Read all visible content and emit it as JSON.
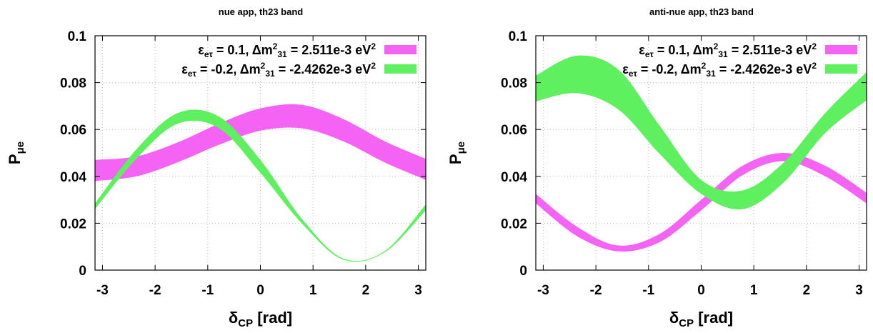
{
  "chart_data": [
    {
      "type": "area",
      "title": "nue app, th23 band",
      "xlabel": "δ",
      "xlabel_sub": "CP",
      "xlabel_suffix": " [rad]",
      "ylabel": "P",
      "ylabel_sub": "μe",
      "xlim": [
        -3.14159,
        3.14159
      ],
      "ylim": [
        0,
        0.1
      ],
      "xticks": [
        -3,
        -2,
        -1,
        0,
        1,
        2,
        3
      ],
      "xtick_labels": [
        "-3",
        "-2",
        "-1",
        "0",
        "1",
        "2",
        "3"
      ],
      "yticks": [
        0,
        0.02,
        0.04,
        0.06,
        0.08,
        0.1
      ],
      "ytick_labels": [
        "0",
        "0.02",
        "0.04",
        "0.06",
        "0.08",
        "0.1"
      ],
      "grid": true,
      "legend_position": "top-right",
      "series": [
        {
          "legend": {
            "eps": "ε",
            "eps_sub": "eτ",
            "eps_val": " = 0.1, Δm",
            "dm_sup": "2",
            "dm_sub": "31",
            "dm_val": " = 2.511e-3 eV",
            "ev_sup": "2"
          },
          "color": "#f463f4",
          "x": [
            -3.14159,
            -2.35619,
            -1.5708,
            -0.785398,
            0,
            0.785398,
            1.5708,
            2.35619,
            3.14159
          ],
          "lower": [
            0.038,
            0.04,
            0.046,
            0.0535,
            0.0595,
            0.0605,
            0.055,
            0.046,
            0.0385
          ],
          "upper": [
            0.047,
            0.0485,
            0.0545,
            0.0625,
            0.069,
            0.0705,
            0.0645,
            0.055,
            0.0475
          ]
        },
        {
          "legend": {
            "eps": "ε",
            "eps_sub": "eτ",
            "eps_val": " = -0.2, Δm",
            "dm_sup": "2",
            "dm_sub": "31",
            "dm_val": " = -2.4262e-3 eV",
            "ev_sup": "2"
          },
          "color": "#5ef05e",
          "x": [
            -3.14159,
            -2.35619,
            -1.5708,
            -0.785398,
            0,
            0.785398,
            1.5708,
            2.35619,
            3.14159
          ],
          "lower": [
            0.026,
            0.0475,
            0.0625,
            0.0605,
            0.0415,
            0.02,
            0.0045,
            0.0075,
            0.0255
          ],
          "upper": [
            0.0285,
            0.0515,
            0.067,
            0.0655,
            0.047,
            0.022,
            0.005,
            0.008,
            0.028
          ]
        }
      ]
    },
    {
      "type": "area",
      "title": "anti-nue app, th23 band",
      "xlabel": "δ",
      "xlabel_sub": "CP",
      "xlabel_suffix": " [rad]",
      "ylabel": "P",
      "ylabel_sub": "μe",
      "xlim": [
        -3.14159,
        3.14159
      ],
      "ylim": [
        0,
        0.1
      ],
      "xticks": [
        -3,
        -2,
        -1,
        0,
        1,
        2,
        3
      ],
      "xtick_labels": [
        "-3",
        "-2",
        "-1",
        "0",
        "1",
        "2",
        "3"
      ],
      "yticks": [
        0,
        0.02,
        0.04,
        0.06,
        0.08,
        0.1
      ],
      "ytick_labels": [
        "0",
        "0.02",
        "0.04",
        "0.06",
        "0.08",
        "0.1"
      ],
      "grid": true,
      "legend_position": "top-right",
      "series": [
        {
          "legend": {
            "eps": "ε",
            "eps_sub": "eτ",
            "eps_val": " = 0.1, Δm",
            "dm_sup": "2",
            "dm_sub": "31",
            "dm_val": " = 2.511e-3 eV",
            "ev_sup": "2"
          },
          "color": "#f463f4",
          "x": [
            -3.14159,
            -2.35619,
            -1.5708,
            -0.785398,
            0,
            0.785398,
            1.5708,
            2.35619,
            3.14159
          ],
          "lower": [
            0.0285,
            0.0145,
            0.008,
            0.012,
            0.0255,
            0.0405,
            0.0465,
            0.04,
            0.0285
          ],
          "upper": [
            0.0325,
            0.0185,
            0.0105,
            0.0155,
            0.03,
            0.0445,
            0.05,
            0.0445,
            0.033
          ]
        },
        {
          "legend": {
            "eps": "ε",
            "eps_sub": "eτ",
            "eps_val": " = -0.2, Δm",
            "dm_sup": "2",
            "dm_sub": "31",
            "dm_val": " = -2.4262e-3 eV",
            "ev_sup": "2"
          },
          "color": "#5ef05e",
          "x": [
            -3.14159,
            -2.35619,
            -1.5708,
            -0.785398,
            0,
            0.785398,
            1.5708,
            2.35619,
            3.14159
          ],
          "lower": [
            0.072,
            0.0755,
            0.0685,
            0.0495,
            0.0325,
            0.026,
            0.0375,
            0.0585,
            0.0725
          ],
          "upper": [
            0.083,
            0.0915,
            0.0855,
            0.0615,
            0.0385,
            0.034,
            0.046,
            0.067,
            0.0845
          ]
        }
      ]
    }
  ]
}
